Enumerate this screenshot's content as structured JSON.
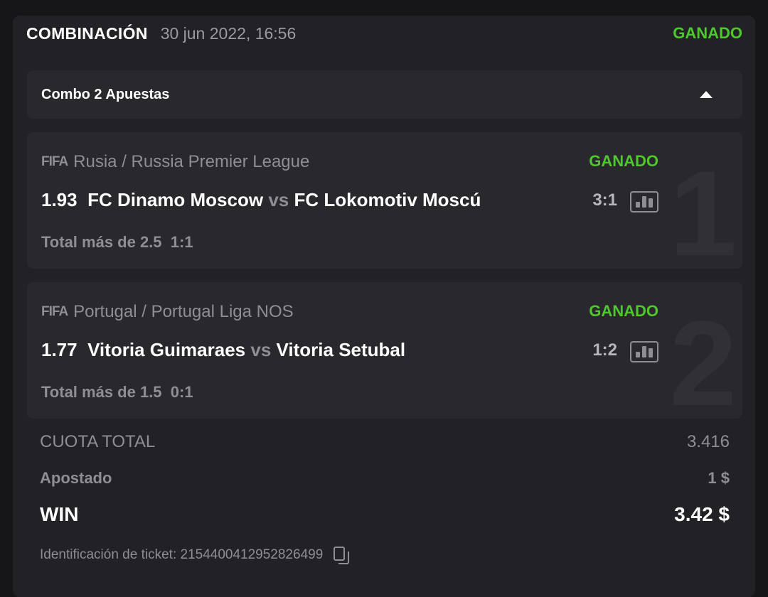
{
  "header": {
    "title": "COMBINACIÓN",
    "datetime": "30 jun 2022, 16:56",
    "status": "GANADO"
  },
  "combo": {
    "label": "Combo 2 Apuestas"
  },
  "colors": {
    "won": "#4fc72e",
    "card": "#222226",
    "panel": "#28282d"
  },
  "events": [
    {
      "index": "1",
      "sport_logo": "FIFA",
      "league": "Rusia / Russia Premier League",
      "status": "GANADO",
      "odds": "1.93",
      "home": "FC Dinamo Moscow",
      "vs": "vs",
      "away": "FC Lokomotiv Moscú",
      "score": "3:1",
      "market": "Total más de 2.5",
      "market_score": "1:1"
    },
    {
      "index": "2",
      "sport_logo": "FIFA",
      "league": "Portugal / Portugal Liga NOS",
      "status": "GANADO",
      "odds": "1.77",
      "home": "Vitoria Guimaraes",
      "vs": "vs",
      "away": "Vitoria Setubal",
      "score": "1:2",
      "market": "Total más de 1.5",
      "market_score": "0:1"
    }
  ],
  "summary": {
    "total_odds_label": "CUOTA TOTAL",
    "total_odds": "3.416",
    "stake_label": "Apostado",
    "stake": "1 $",
    "win_label": "WIN",
    "win": "3.42 $"
  },
  "ticket": {
    "label": "Identificación de ticket: 2154400412952826499"
  }
}
